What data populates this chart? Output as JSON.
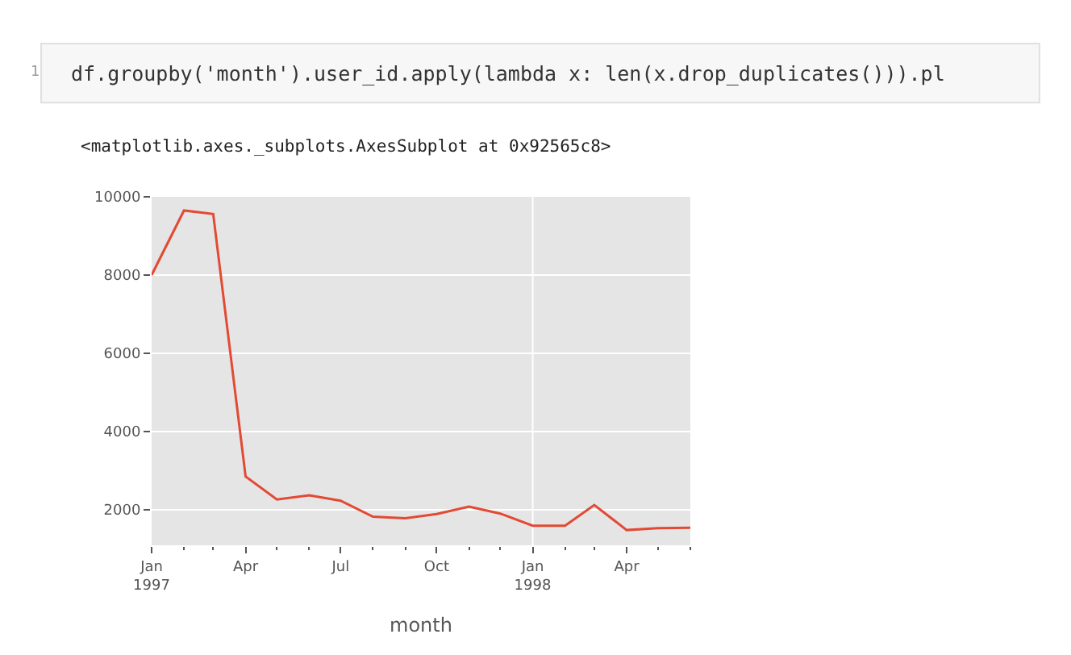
{
  "chart_data": {
    "type": "line",
    "xlabel": "month",
    "annotations": [
      "1",
      "df.groupby('month').user_id.apply(lambda x: len(x.drop_duplicates())).pl",
      "<matplotlib.axes._subplots.AxesSubplot at 0x92565c8>"
    ],
    "x": [
      "1997-01",
      "1997-02",
      "1997-03",
      "1997-04",
      "1997-05",
      "1997-06",
      "1997-07",
      "1997-08",
      "1997-09",
      "1997-10",
      "1997-11",
      "1997-12",
      "1998-01",
      "1998-02",
      "1998-03",
      "1998-04",
      "1998-05",
      "1998-06"
    ],
    "series": [
      {
        "color": "#e24a33",
        "values": [
          8000,
          9650,
          9560,
          2850,
          2260,
          2370,
          2230,
          1820,
          1780,
          1890,
          2080,
          1900,
          1590,
          1590,
          2120,
          1480,
          1530,
          1540
        ]
      }
    ],
    "xlim": [
      "1997-01",
      "1998-06"
    ],
    "xticks": [
      {
        "value": "1997-01",
        "label": "Jan\n1997"
      },
      {
        "value": "1997-04",
        "label": "Apr"
      },
      {
        "value": "1997-07",
        "label": "Jul"
      },
      {
        "value": "1997-10",
        "label": "Oct"
      },
      {
        "value": "1998-01",
        "label": "Jan\n1998"
      },
      {
        "value": "1998-04",
        "label": "Apr"
      }
    ],
    "ylim": [
      1090,
      10000
    ],
    "yticks": [
      2000,
      4000,
      6000,
      8000,
      10000
    ],
    "grid": "y",
    "marker": "none",
    "line_style": "solid",
    "ref_lines": [
      {
        "axis": "x",
        "value": "1998-01",
        "color": "#ffffff"
      }
    ]
  }
}
